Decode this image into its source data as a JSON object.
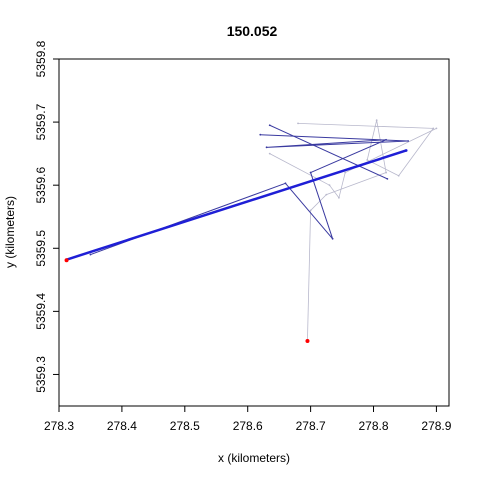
{
  "chart_data": {
    "type": "line",
    "title": "150.052",
    "xlabel": "x (kilometers)",
    "ylabel": "y (kilometers)",
    "xlim": [
      278.3,
      278.92
    ],
    "ylim": [
      5359.25,
      5359.8
    ],
    "xticks": [
      278.3,
      278.4,
      278.5,
      278.6,
      278.7,
      278.8,
      278.9
    ],
    "yticks": [
      5359.3,
      5359.4,
      5359.5,
      5359.6,
      5359.7,
      5359.8
    ],
    "xtick_labels": [
      "278.3",
      "278.4",
      "278.5",
      "278.6",
      "278.7",
      "278.8",
      "278.9"
    ],
    "ytick_labels": [
      "5359.3",
      "5359.4",
      "5359.5",
      "5359.6",
      "5359.7",
      "5359.8"
    ],
    "grid": false,
    "colors": {
      "main_track": "#1f1fd6",
      "secondary": "#3a3aa0",
      "light": "#b8b8cc",
      "start_end": "#ff0000"
    },
    "series": [
      {
        "style": "main",
        "x": [
          278.312,
          278.852
        ],
        "y": [
          5359.482,
          5359.655
        ]
      },
      {
        "style": "secondary",
        "x": [
          278.62,
          278.855,
          278.63,
          278.82,
          278.7,
          278.735,
          278.66,
          278.35
        ],
        "y": [
          5359.68,
          5359.67,
          5359.66,
          5359.672,
          5359.62,
          5359.515,
          5359.603,
          5359.49
        ]
      },
      {
        "style": "secondary",
        "x": [
          278.635,
          278.822
        ],
        "y": [
          5359.695,
          5359.61
        ]
      },
      {
        "style": "light",
        "x": [
          278.68,
          278.895,
          278.84,
          278.79,
          278.805,
          278.82,
          278.725,
          278.7,
          278.695
        ],
        "y": [
          5359.698,
          5359.69,
          5359.615,
          5359.64,
          5359.703,
          5359.62,
          5359.585,
          5359.56,
          5359.355
        ]
      },
      {
        "style": "light",
        "x": [
          278.635,
          278.73,
          278.745,
          278.755,
          278.9
        ],
        "y": [
          5359.65,
          5359.6,
          5359.58,
          5359.62,
          5359.69
        ]
      }
    ],
    "markers": [
      {
        "x": 278.312,
        "y": 5359.481,
        "color": "#ff0000"
      },
      {
        "x": 278.695,
        "y": 5359.353,
        "color": "#ff0000"
      }
    ]
  }
}
